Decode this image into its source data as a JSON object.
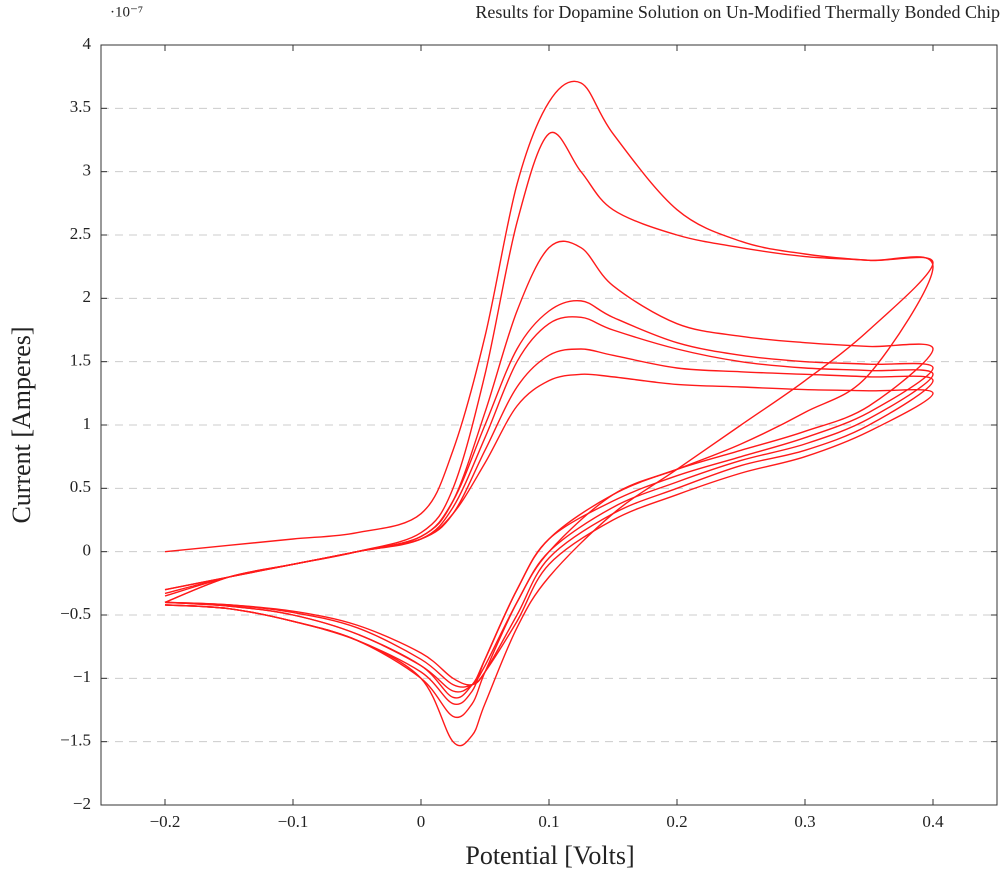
{
  "chart_data": {
    "type": "line",
    "title": "Results for Dopamine Solution on Un-Modified Thermally Bonded Chip",
    "y_multiplier": "·10⁻⁷",
    "x_label": "Potential [Volts]",
    "y_label": "Current [Amperes]",
    "x": [
      -0.2,
      -0.15,
      -0.1,
      -0.05,
      0,
      0.025,
      0.05,
      0.075,
      0.1,
      0.125,
      0.15,
      0.2,
      0.25,
      0.3,
      0.35,
      0.4,
      0.35,
      0.3,
      0.25,
      0.2,
      0.15,
      0.1,
      0.075,
      0.05,
      0.04,
      0.025,
      0,
      -0.05,
      -0.1,
      -0.15,
      -0.2
    ],
    "series": [
      {
        "color": "#ff1a1a",
        "values": [
          0,
          0.05,
          0.1,
          0.15,
          0.3,
          0.8,
          1.7,
          2.9,
          3.55,
          3.7,
          3.3,
          2.7,
          2.45,
          2.35,
          2.3,
          2.28,
          1.75,
          1.35,
          1.0,
          0.65,
          0.3,
          -0.2,
          -0.6,
          -1.2,
          -1.45,
          -1.5,
          -1.0,
          -0.7,
          -0.55,
          -0.45,
          -0.42
        ]
      },
      {
        "color": "#ff1a1a",
        "values": [
          -0.4,
          -0.2,
          -0.1,
          0,
          0.15,
          0.5,
          1.4,
          2.6,
          3.3,
          3.0,
          2.7,
          2.5,
          2.4,
          2.33,
          2.3,
          2.25,
          1.4,
          1.1,
          0.85,
          0.65,
          0.45,
          0,
          -0.4,
          -0.95,
          -1.2,
          -1.3,
          -1.0,
          -0.7,
          -0.55,
          -0.45,
          -0.42
        ]
      },
      {
        "color": "#ff1a1a",
        "values": [
          -0.4,
          -0.2,
          -0.1,
          0,
          0.12,
          0.4,
          1.1,
          1.9,
          2.4,
          2.4,
          2.1,
          1.8,
          1.7,
          1.65,
          1.62,
          1.6,
          1.15,
          0.95,
          0.8,
          0.65,
          0.45,
          0.1,
          -0.3,
          -0.85,
          -1.1,
          -1.2,
          -0.95,
          -0.7,
          -0.55,
          -0.45,
          -0.42
        ]
      },
      {
        "color": "#ff1a1a",
        "values": [
          -0.35,
          -0.2,
          -0.1,
          0,
          0.12,
          0.4,
          1.0,
          1.6,
          1.9,
          1.98,
          1.85,
          1.65,
          1.55,
          1.5,
          1.48,
          1.45,
          1.1,
          0.9,
          0.75,
          0.6,
          0.4,
          0.1,
          -0.3,
          -0.85,
          -1.05,
          -1.15,
          -0.9,
          -0.65,
          -0.5,
          -0.43,
          -0.4
        ]
      },
      {
        "color": "#ff1a1a",
        "values": [
          -0.33,
          -0.2,
          -0.1,
          0,
          0.1,
          0.35,
          0.9,
          1.5,
          1.8,
          1.85,
          1.75,
          1.6,
          1.5,
          1.45,
          1.43,
          1.4,
          1.05,
          0.85,
          0.72,
          0.55,
          0.35,
          0.0,
          -0.4,
          -0.9,
          -1.05,
          -1.1,
          -0.9,
          -0.65,
          -0.5,
          -0.43,
          -0.4
        ]
      },
      {
        "color": "#ff1a1a",
        "values": [
          -0.3,
          -0.2,
          -0.1,
          0,
          0.1,
          0.3,
          0.8,
          1.3,
          1.55,
          1.6,
          1.55,
          1.45,
          1.42,
          1.4,
          1.38,
          1.35,
          1.0,
          0.8,
          0.68,
          0.5,
          0.3,
          -0.05,
          -0.5,
          -0.95,
          -1.05,
          -1.05,
          -0.85,
          -0.6,
          -0.48,
          -0.42,
          -0.4
        ]
      },
      {
        "color": "#ff1a1a",
        "values": [
          -0.3,
          -0.2,
          -0.1,
          0,
          0.1,
          0.3,
          0.7,
          1.15,
          1.35,
          1.4,
          1.38,
          1.32,
          1.3,
          1.28,
          1.27,
          1.25,
          0.95,
          0.75,
          0.62,
          0.45,
          0.25,
          -0.1,
          -0.55,
          -0.95,
          -1.05,
          -1.0,
          -0.8,
          -0.58,
          -0.47,
          -0.42,
          -0.4
        ]
      }
    ],
    "xlim": [
      -0.25,
      0.45
    ],
    "ylim": [
      -2,
      4
    ],
    "xticks": [
      {
        "value": -0.2,
        "label": "−0.2"
      },
      {
        "value": -0.1,
        "label": "−0.1"
      },
      0,
      0.1,
      0.2,
      0.3,
      0.4
    ],
    "yticks": [
      {
        "value": -2,
        "label": "−2"
      },
      {
        "value": -1.5,
        "label": "−1.5"
      },
      {
        "value": -1,
        "label": "−1"
      },
      {
        "value": -0.5,
        "label": "−0.5"
      },
      0,
      0.5,
      1,
      1.5,
      2,
      2.5,
      3,
      3.5,
      4
    ],
    "grid": true
  }
}
